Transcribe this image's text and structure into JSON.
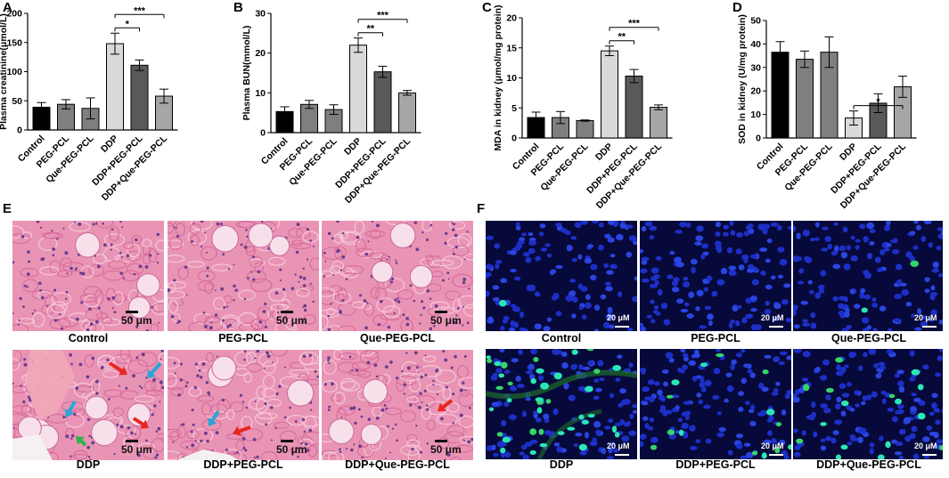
{
  "panels": {
    "A": "A",
    "B": "B",
    "C": "C",
    "D": "D",
    "E": "E",
    "F": "F"
  },
  "chart_data": [
    {
      "id": "A",
      "type": "bar",
      "ylabel": "Plasma creatinine(μmol/L)",
      "ylim": [
        0,
        200
      ],
      "yticks": [
        0,
        50,
        100,
        150,
        200
      ],
      "categories": [
        "Control",
        "PEG-PCL",
        "Que-PEG-PCL",
        "DDP",
        "DDP+PEG-PCL",
        "DDP+Que-PEG-PCL"
      ],
      "values": [
        39,
        44,
        37,
        148,
        111,
        58
      ],
      "errors": [
        8,
        8,
        18,
        18,
        9,
        12
      ],
      "colors": [
        "#000000",
        "#7f7f7f",
        "#7f7f7f",
        "#d9d9d9",
        "#595959",
        "#a6a6a6"
      ],
      "significance": [
        {
          "from": 3,
          "to": 4,
          "label": "*",
          "level": 1
        },
        {
          "from": 3,
          "to": 5,
          "label": "***",
          "level": 2
        }
      ]
    },
    {
      "id": "B",
      "type": "bar",
      "ylabel": "Plasma BUN(mmol/L)",
      "ylim": [
        0,
        30
      ],
      "yticks": [
        0,
        10,
        20,
        30
      ],
      "categories": [
        "Control",
        "PEG-PCL",
        "Que-PEG-PCL",
        "DDP",
        "DDP+PEG-PCL",
        "DDP+Que-PEG-PCL"
      ],
      "values": [
        5.3,
        7.1,
        5.8,
        22,
        15.3,
        10
      ],
      "errors": [
        1.2,
        1,
        1.2,
        1.8,
        1.4,
        0.6
      ],
      "colors": [
        "#000000",
        "#7f7f7f",
        "#7f7f7f",
        "#d9d9d9",
        "#595959",
        "#a6a6a6"
      ],
      "significance": [
        {
          "from": 3,
          "to": 4,
          "label": "**",
          "level": 1
        },
        {
          "from": 3,
          "to": 5,
          "label": "***",
          "level": 2
        }
      ]
    },
    {
      "id": "C",
      "type": "bar",
      "ylabel": "MDA in kidney (μmol/mg protein)",
      "ylim": [
        0,
        20
      ],
      "yticks": [
        0,
        5,
        10,
        15,
        20
      ],
      "categories": [
        "Control",
        "PEG-PCL",
        "Que-PEG-PCL",
        "DDP",
        "DDP+PEG-PCL",
        "DDP+Que-PEG-PCL"
      ],
      "values": [
        3.4,
        3.4,
        2.9,
        14.5,
        10.3,
        5.1
      ],
      "errors": [
        0.9,
        1,
        0.1,
        0.8,
        1.1,
        0.4
      ],
      "colors": [
        "#000000",
        "#7f7f7f",
        "#7f7f7f",
        "#d9d9d9",
        "#595959",
        "#a6a6a6"
      ],
      "significance": [
        {
          "from": 3,
          "to": 4,
          "label": "**",
          "level": 1
        },
        {
          "from": 3,
          "to": 5,
          "label": "***",
          "level": 2
        }
      ]
    },
    {
      "id": "D",
      "type": "bar",
      "ylabel": "SOD in kidney (U/mg protein)",
      "ylim": [
        0,
        50
      ],
      "yticks": [
        0,
        10,
        20,
        30,
        40,
        50
      ],
      "categories": [
        "Control",
        "PEG-PCL",
        "Que-PEG-PCL",
        "DDP",
        "DDP+PEG-PCL",
        "DDP+Que-PEG-PCL"
      ],
      "values": [
        36.5,
        33.5,
        36.5,
        8.5,
        14.8,
        21.8
      ],
      "errors": [
        4.5,
        3.5,
        6.5,
        3,
        4,
        4.5
      ],
      "colors": [
        "#000000",
        "#7f7f7f",
        "#7f7f7f",
        "#d9d9d9",
        "#595959",
        "#a6a6a6"
      ],
      "significance": [
        {
          "from": 3,
          "to": 5,
          "label": "*",
          "level": 1
        }
      ]
    }
  ],
  "he_panel": {
    "tiles": [
      {
        "label": "Control",
        "scale": "50 μm"
      },
      {
        "label": "PEG-PCL",
        "scale": "50 μm"
      },
      {
        "label": "Que-PEG-PCL",
        "scale": "50 μm"
      },
      {
        "label": "DDP",
        "scale": "50 μm"
      },
      {
        "label": "DDP+PEG-PCL",
        "scale": "50 μm"
      },
      {
        "label": "DDP+Que-PEG-PCL",
        "scale": "50 μm"
      }
    ],
    "arrow_colors": {
      "red": "#e8261f",
      "blue": "#2aa5d6",
      "green": "#2eb34a"
    }
  },
  "if_panel": {
    "tiles": [
      {
        "label": "Control",
        "scale": "20 μM"
      },
      {
        "label": "PEG-PCL",
        "scale": "20 μM"
      },
      {
        "label": "Que-PEG-PCL",
        "scale": "20 μM"
      },
      {
        "label": "DDP",
        "scale": "20 μM"
      },
      {
        "label": "DDP+PEG-PCL",
        "scale": "20 μM"
      },
      {
        "label": "DDP+Que-PEG-PCL",
        "scale": "20 μM"
      }
    ]
  }
}
